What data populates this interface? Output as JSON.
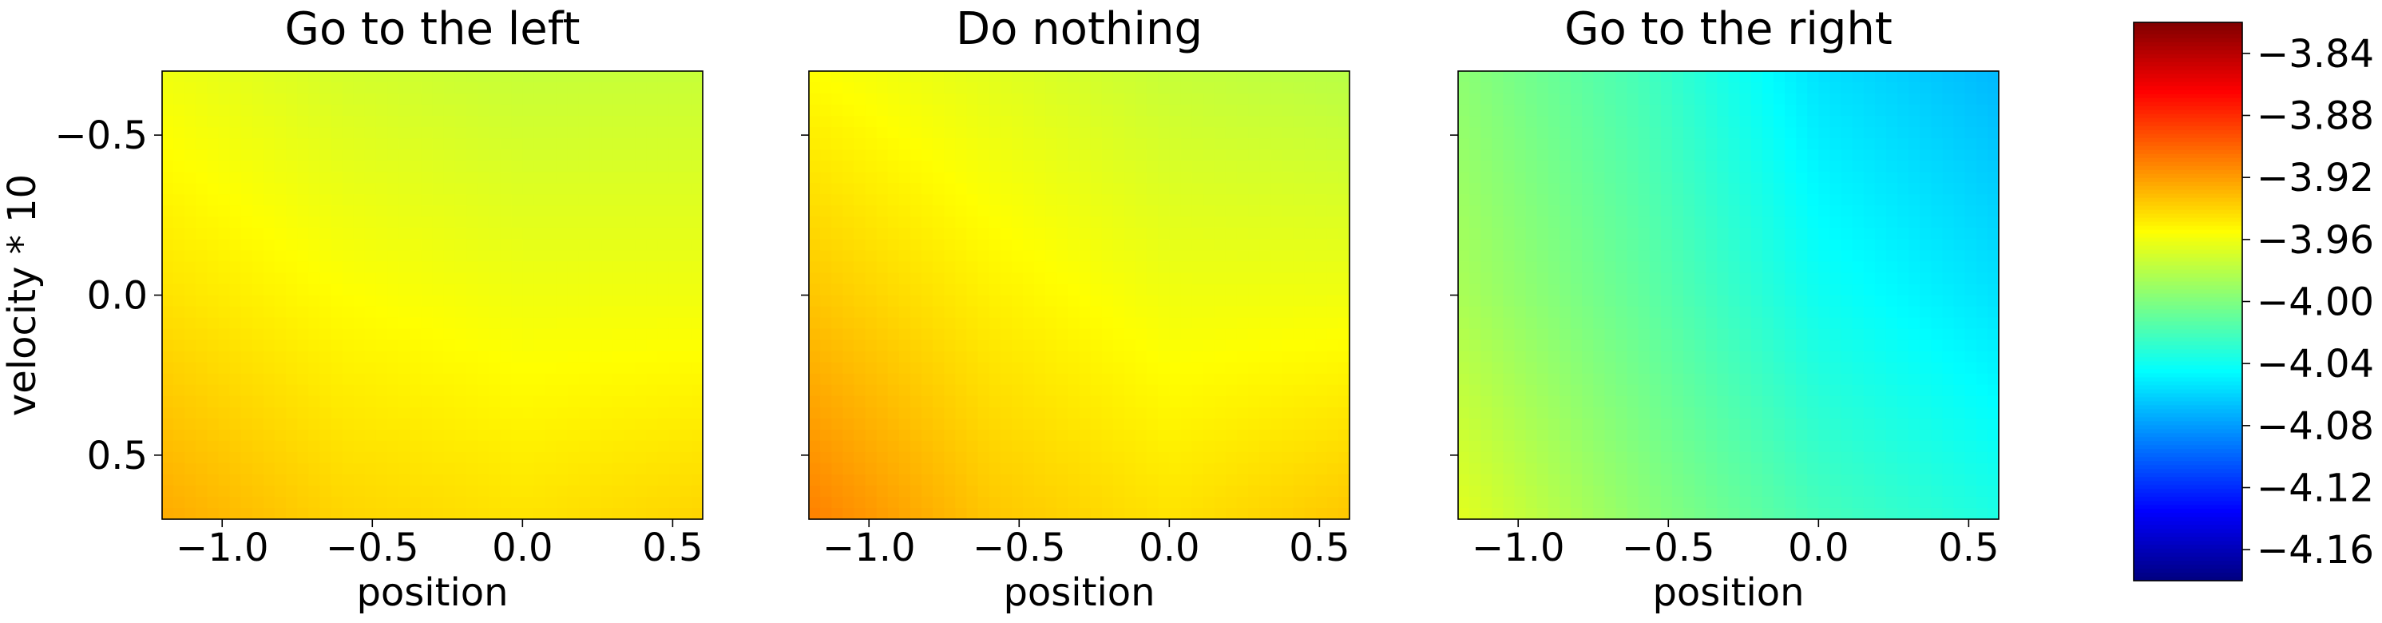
{
  "chart_data": {
    "type": "heatmap",
    "colormap": "jet",
    "shared_colorbar": {
      "vmin": -4.18,
      "vmax": -3.82,
      "ticks": [
        -3.84,
        -3.88,
        -3.92,
        -3.96,
        -4.0,
        -4.04,
        -4.08,
        -4.12,
        -4.16
      ],
      "tick_labels": [
        "−3.84",
        "−3.88",
        "−3.92",
        "−3.96",
        "−4.00",
        "−4.04",
        "−4.08",
        "−4.12",
        "−4.16"
      ]
    },
    "panels": [
      {
        "title": "Go to the left",
        "xlabel": "position",
        "ylabel": "velocity * 10",
        "xlim": [
          -1.2,
          0.6
        ],
        "ylim": [
          0.7,
          -0.7
        ],
        "xticks": [
          -1.0,
          -0.5,
          0.0,
          0.5
        ],
        "xtick_labels": [
          "−1.0",
          "−0.5",
          "0.0",
          "0.5"
        ],
        "yticks": [
          -0.5,
          0.0,
          0.5
        ],
        "ytick_labels": [
          "−0.5",
          "0.0",
          "0.5"
        ],
        "show_ytick_labels": true,
        "x": [
          -1.2,
          -0.6,
          0.0,
          0.6
        ],
        "y": [
          -0.7,
          0.0,
          0.7
        ],
        "z": [
          [
            -3.96,
            -3.97,
            -3.975,
            -3.975
          ],
          [
            -3.945,
            -3.955,
            -3.96,
            -3.96
          ],
          [
            -3.925,
            -3.94,
            -3.945,
            -3.94
          ]
        ]
      },
      {
        "title": "Do nothing",
        "xlabel": "position",
        "ylabel": "",
        "xlim": [
          -1.2,
          0.6
        ],
        "ylim": [
          0.7,
          -0.7
        ],
        "xticks": [
          -1.0,
          -0.5,
          0.0,
          0.5
        ],
        "xtick_labels": [
          "−1.0",
          "−0.5",
          "0.0",
          "0.5"
        ],
        "yticks": [
          -0.5,
          0.0,
          0.5
        ],
        "ytick_labels": [],
        "show_ytick_labels": false,
        "x": [
          -1.2,
          -0.6,
          0.0,
          0.6
        ],
        "y": [
          -0.7,
          0.0,
          0.7
        ],
        "z": [
          [
            -3.955,
            -3.965,
            -3.975,
            -3.98
          ],
          [
            -3.935,
            -3.95,
            -3.96,
            -3.96
          ],
          [
            -3.91,
            -3.935,
            -3.945,
            -3.935
          ]
        ]
      },
      {
        "title": "Go to the right",
        "xlabel": "position",
        "ylabel": "",
        "xlim": [
          -1.2,
          0.6
        ],
        "ylim": [
          0.7,
          -0.7
        ],
        "xticks": [
          -1.0,
          -0.5,
          0.0,
          0.5
        ],
        "xtick_labels": [
          "−1.0",
          "−0.5",
          "0.0",
          "0.5"
        ],
        "yticks": [
          -0.5,
          0.0,
          0.5
        ],
        "ytick_labels": [],
        "show_ytick_labels": false,
        "x": [
          -1.2,
          -0.6,
          0.0,
          0.6
        ],
        "y": [
          -0.7,
          0.0,
          0.7
        ],
        "z": [
          [
            -3.995,
            -4.02,
            -4.055,
            -4.07
          ],
          [
            -3.985,
            -4.01,
            -4.04,
            -4.055
          ],
          [
            -3.965,
            -3.995,
            -4.02,
            -4.035
          ]
        ]
      }
    ]
  }
}
